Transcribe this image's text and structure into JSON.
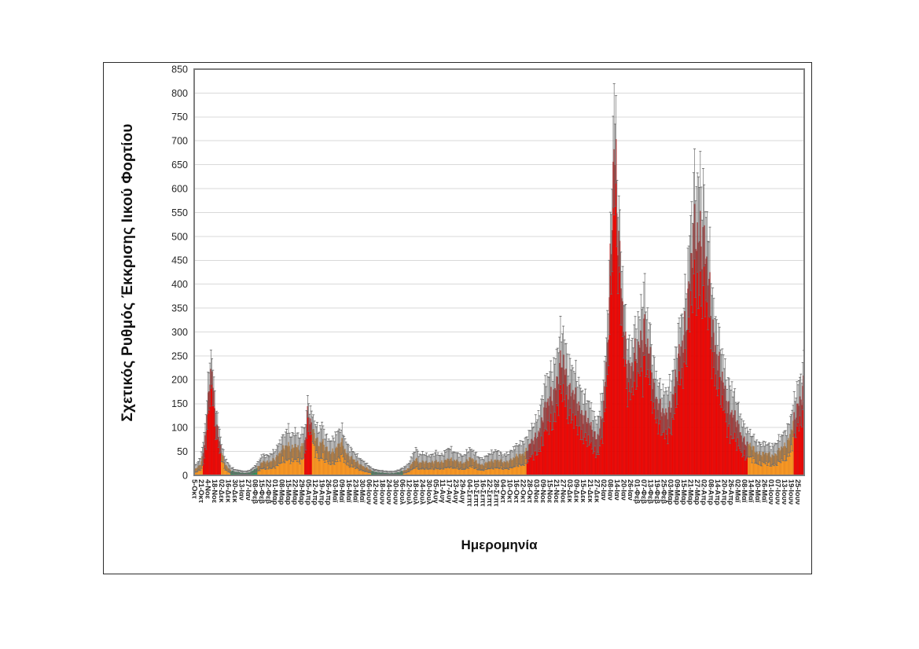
{
  "chart_data": {
    "type": "bar",
    "title": "",
    "xlabel": "Ημερομηνία",
    "ylabel": "Σχετικός Ρυθμός Έκκρισης Ιικού Φορτίου",
    "ylim": [
      0,
      850
    ],
    "ytick_step": 50,
    "y_ticks": [
      0,
      50,
      100,
      150,
      200,
      250,
      300,
      350,
      400,
      450,
      500,
      550,
      600,
      650,
      700,
      750,
      800,
      850
    ],
    "grid": "horizontal",
    "error_bars": true,
    "n_bars": 637,
    "label_every": 7,
    "x_tick_labels": [
      "5-Οκτ",
      "21-Οκτ",
      "4-Νοε",
      "18-Νοε",
      "02-Δεκ",
      "16-Δεκ",
      "30-Δεκ",
      "13-Ιαν",
      "27-Ιαν",
      "08-Φεβ",
      "15-Φεβ",
      "22-Φεβ",
      "01-Μαρ",
      "08-Μαρ",
      "15-Μαρ",
      "22-Μαρ",
      "29-Μαρ",
      "05-Απρ",
      "12-Απρ",
      "19-Απρ",
      "26-Απρ",
      "03-Μαϊ",
      "09-Μαϊ",
      "16-Μαϊ",
      "23-Μαϊ",
      "30-Μαϊ",
      "06-Ιουν",
      "12-Ιουν",
      "18-Ιουν",
      "24-Ιουν",
      "30-Ιουν",
      "06-Ιουλ",
      "12-Ιουλ",
      "18-Ιουλ",
      "24-Ιουλ",
      "30-Ιουλ",
      "05-Αυγ",
      "11-Αυγ",
      "17-Αυγ",
      "23-Αυγ",
      "29-Αυγ",
      "04-Σεπτ",
      "10-Σεπτ",
      "16-Σεπτ",
      "22-Σεπτ",
      "28-Σεπτ",
      "04-Οκτ",
      "10-Οκτ",
      "16-Οκτ",
      "22-Οκτ",
      "28-Οκτ",
      "03-Νοε",
      "09-Νοε",
      "15-Νοε",
      "21-Νοε",
      "27-Νοε",
      "03-Δεκ",
      "09-Δεκ",
      "15-Δεκ",
      "21-Δεκ",
      "27-Δεκ",
      "02-Ιαν",
      "08-Ιαν",
      "14-Ιαν",
      "20-Ιαν",
      "26-Ιαν",
      "01-Φεβ",
      "07-Φεβ",
      "13-Φεβ",
      "19-Φεβ",
      "25-Φεβ",
      "03-Μαρ",
      "09-Μαρ",
      "15-Μαρ",
      "21-Μαρ",
      "27-Μαρ",
      "02-Απρ",
      "08-Απρ",
      "14-Απρ",
      "20-Απρ",
      "26-Απρ",
      "02-Μαϊ",
      "08-Μαϊ",
      "14-Μαϊ",
      "20-Μαϊ",
      "26-Μαϊ",
      "01-Ιουν",
      "07-Ιουν",
      "13-Ιουν",
      "19-Ιουν",
      "25-Ιουν"
    ],
    "colors": {
      "red": "#FF0500",
      "red_edge": "#B30000",
      "orange": "#FFA226",
      "orange_edge": "#D86E0A",
      "green": "#2F9E5B",
      "green_edge": "#1C693B",
      "whisker": "#6E6E6E",
      "gridline": "#D9D9D9",
      "plot_border": "#7F7F7F",
      "figure_border": "#2B2B2B",
      "tick_text": "#262626"
    },
    "color_segments": [
      {
        "from": 0,
        "to": 8,
        "color": "orange"
      },
      {
        "from": 9,
        "to": 27,
        "color": "red"
      },
      {
        "from": 28,
        "to": 37,
        "color": "orange"
      },
      {
        "from": 38,
        "to": 65,
        "color": "green"
      },
      {
        "from": 66,
        "to": 114,
        "color": "orange"
      },
      {
        "from": 115,
        "to": 122,
        "color": "red"
      },
      {
        "from": 123,
        "to": 184,
        "color": "orange"
      },
      {
        "from": 185,
        "to": 217,
        "color": "green"
      },
      {
        "from": 218,
        "to": 346,
        "color": "orange"
      },
      {
        "from": 347,
        "to": 577,
        "color": "red"
      },
      {
        "from": 578,
        "to": 625,
        "color": "orange"
      },
      {
        "from": 626,
        "to": 636,
        "color": "red"
      }
    ],
    "anchors": [
      [
        0,
        12,
        8
      ],
      [
        4,
        18,
        10
      ],
      [
        7,
        30,
        18
      ],
      [
        10,
        60,
        25
      ],
      [
        13,
        120,
        35
      ],
      [
        16,
        195,
        45
      ],
      [
        18,
        222,
        30
      ],
      [
        20,
        165,
        35
      ],
      [
        23,
        110,
        28
      ],
      [
        26,
        72,
        22
      ],
      [
        28,
        48,
        16
      ],
      [
        31,
        26,
        12
      ],
      [
        34,
        18,
        10
      ],
      [
        38,
        10,
        7
      ],
      [
        42,
        7,
        5
      ],
      [
        49,
        5,
        4
      ],
      [
        56,
        5,
        4
      ],
      [
        60,
        8,
        5
      ],
      [
        63,
        12,
        7
      ],
      [
        66,
        18,
        9
      ],
      [
        70,
        28,
        14
      ],
      [
        77,
        26,
        13
      ],
      [
        84,
        36,
        18
      ],
      [
        91,
        50,
        24
      ],
      [
        98,
        68,
        34
      ],
      [
        101,
        56,
        26
      ],
      [
        105,
        60,
        30
      ],
      [
        109,
        52,
        26
      ],
      [
        112,
        64,
        30
      ],
      [
        115,
        75,
        28
      ],
      [
        118,
        126,
        26
      ],
      [
        121,
        108,
        24
      ],
      [
        124,
        88,
        28
      ],
      [
        126,
        84,
        30
      ],
      [
        129,
        68,
        28
      ],
      [
        133,
        72,
        36
      ],
      [
        136,
        56,
        26
      ],
      [
        140,
        48,
        24
      ],
      [
        144,
        52,
        26
      ],
      [
        147,
        56,
        30
      ],
      [
        151,
        62,
        30
      ],
      [
        154,
        66,
        28
      ],
      [
        158,
        50,
        22
      ],
      [
        161,
        42,
        20
      ],
      [
        165,
        34,
        16
      ],
      [
        168,
        28,
        14
      ],
      [
        172,
        24,
        12
      ],
      [
        175,
        21,
        11
      ],
      [
        179,
        16,
        9
      ],
      [
        182,
        12,
        7
      ],
      [
        186,
        8,
        5
      ],
      [
        189,
        7,
        5
      ],
      [
        196,
        5,
        4
      ],
      [
        203,
        4,
        4
      ],
      [
        210,
        5,
        4
      ],
      [
        214,
        6,
        5
      ],
      [
        217,
        9,
        6
      ],
      [
        221,
        12,
        8
      ],
      [
        224,
        17,
        10
      ],
      [
        228,
        26,
        16
      ],
      [
        231,
        33,
        22
      ],
      [
        235,
        27,
        16
      ],
      [
        238,
        30,
        18
      ],
      [
        242,
        26,
        15
      ],
      [
        245,
        25,
        14
      ],
      [
        249,
        28,
        16
      ],
      [
        252,
        31,
        19
      ],
      [
        256,
        27,
        15
      ],
      [
        259,
        26,
        15
      ],
      [
        263,
        32,
        20
      ],
      [
        266,
        37,
        23
      ],
      [
        270,
        32,
        18
      ],
      [
        273,
        29,
        17
      ],
      [
        277,
        26,
        15
      ],
      [
        280,
        26,
        15
      ],
      [
        284,
        31,
        18
      ],
      [
        287,
        35,
        20
      ],
      [
        291,
        31,
        17
      ],
      [
        294,
        28,
        16
      ],
      [
        298,
        24,
        13
      ],
      [
        301,
        22,
        12
      ],
      [
        305,
        25,
        14
      ],
      [
        308,
        28,
        16
      ],
      [
        312,
        32,
        19
      ],
      [
        315,
        33,
        20
      ],
      [
        319,
        29,
        16
      ],
      [
        322,
        26,
        14
      ],
      [
        326,
        29,
        16
      ],
      [
        329,
        32,
        18
      ],
      [
        333,
        35,
        20
      ],
      [
        336,
        38,
        22
      ],
      [
        340,
        42,
        24
      ],
      [
        343,
        47,
        26
      ],
      [
        347,
        54,
        26
      ],
      [
        350,
        62,
        28
      ],
      [
        354,
        72,
        32
      ],
      [
        357,
        85,
        36
      ],
      [
        361,
        104,
        42
      ],
      [
        364,
        124,
        50
      ],
      [
        368,
        145,
        52
      ],
      [
        371,
        164,
        55
      ],
      [
        375,
        180,
        58
      ],
      [
        378,
        196,
        60
      ],
      [
        381,
        215,
        62
      ],
      [
        385,
        236,
        64
      ],
      [
        388,
        210,
        60
      ],
      [
        392,
        182,
        56
      ],
      [
        396,
        163,
        52
      ],
      [
        399,
        150,
        50
      ],
      [
        403,
        140,
        47
      ],
      [
        406,
        130,
        45
      ],
      [
        410,
        114,
        42
      ],
      [
        413,
        100,
        40
      ],
      [
        417,
        88,
        37
      ],
      [
        420,
        82,
        35
      ],
      [
        423,
        100,
        40
      ],
      [
        427,
        140,
        48
      ],
      [
        430,
        220,
        55
      ],
      [
        433,
        370,
        68
      ],
      [
        436,
        600,
        85
      ],
      [
        438,
        708,
        122
      ],
      [
        440,
        640,
        80
      ],
      [
        441,
        540,
        78
      ],
      [
        444,
        420,
        70
      ],
      [
        448,
        325,
        62
      ],
      [
        451,
        260,
        55
      ],
      [
        455,
        212,
        50
      ],
      [
        458,
        228,
        52
      ],
      [
        462,
        256,
        56
      ],
      [
        465,
        290,
        62
      ],
      [
        469,
        320,
        88
      ],
      [
        472,
        270,
        60
      ],
      [
        476,
        232,
        55
      ],
      [
        479,
        195,
        50
      ],
      [
        483,
        165,
        46
      ],
      [
        486,
        140,
        44
      ],
      [
        490,
        120,
        44
      ],
      [
        493,
        132,
        46
      ],
      [
        497,
        150,
        50
      ],
      [
        500,
        178,
        52
      ],
      [
        504,
        212,
        56
      ],
      [
        507,
        255,
        60
      ],
      [
        511,
        302,
        66
      ],
      [
        514,
        360,
        76
      ],
      [
        518,
        425,
        92
      ],
      [
        521,
        478,
        105
      ],
      [
        525,
        516,
        122
      ],
      [
        528,
        532,
        123
      ],
      [
        530,
        515,
        115
      ],
      [
        532,
        472,
        100
      ],
      [
        535,
        420,
        92
      ],
      [
        539,
        352,
        80
      ],
      [
        542,
        300,
        70
      ],
      [
        546,
        252,
        62
      ],
      [
        549,
        210,
        55
      ],
      [
        553,
        178,
        50
      ],
      [
        556,
        155,
        48
      ],
      [
        560,
        142,
        55
      ],
      [
        563,
        122,
        46
      ],
      [
        567,
        102,
        42
      ],
      [
        570,
        88,
        36
      ],
      [
        574,
        76,
        31
      ],
      [
        578,
        64,
        27
      ],
      [
        581,
        58,
        25
      ],
      [
        585,
        52,
        23
      ],
      [
        588,
        48,
        22
      ],
      [
        592,
        46,
        21
      ],
      [
        595,
        44,
        20
      ],
      [
        599,
        43,
        20
      ],
      [
        602,
        42,
        20
      ],
      [
        606,
        45,
        22
      ],
      [
        609,
        48,
        24
      ],
      [
        613,
        54,
        26
      ],
      [
        616,
        62,
        28
      ],
      [
        620,
        76,
        32
      ],
      [
        623,
        95,
        36
      ],
      [
        627,
        118,
        40
      ],
      [
        630,
        142,
        45
      ],
      [
        633,
        168,
        48
      ],
      [
        636,
        196,
        50
      ]
    ]
  }
}
